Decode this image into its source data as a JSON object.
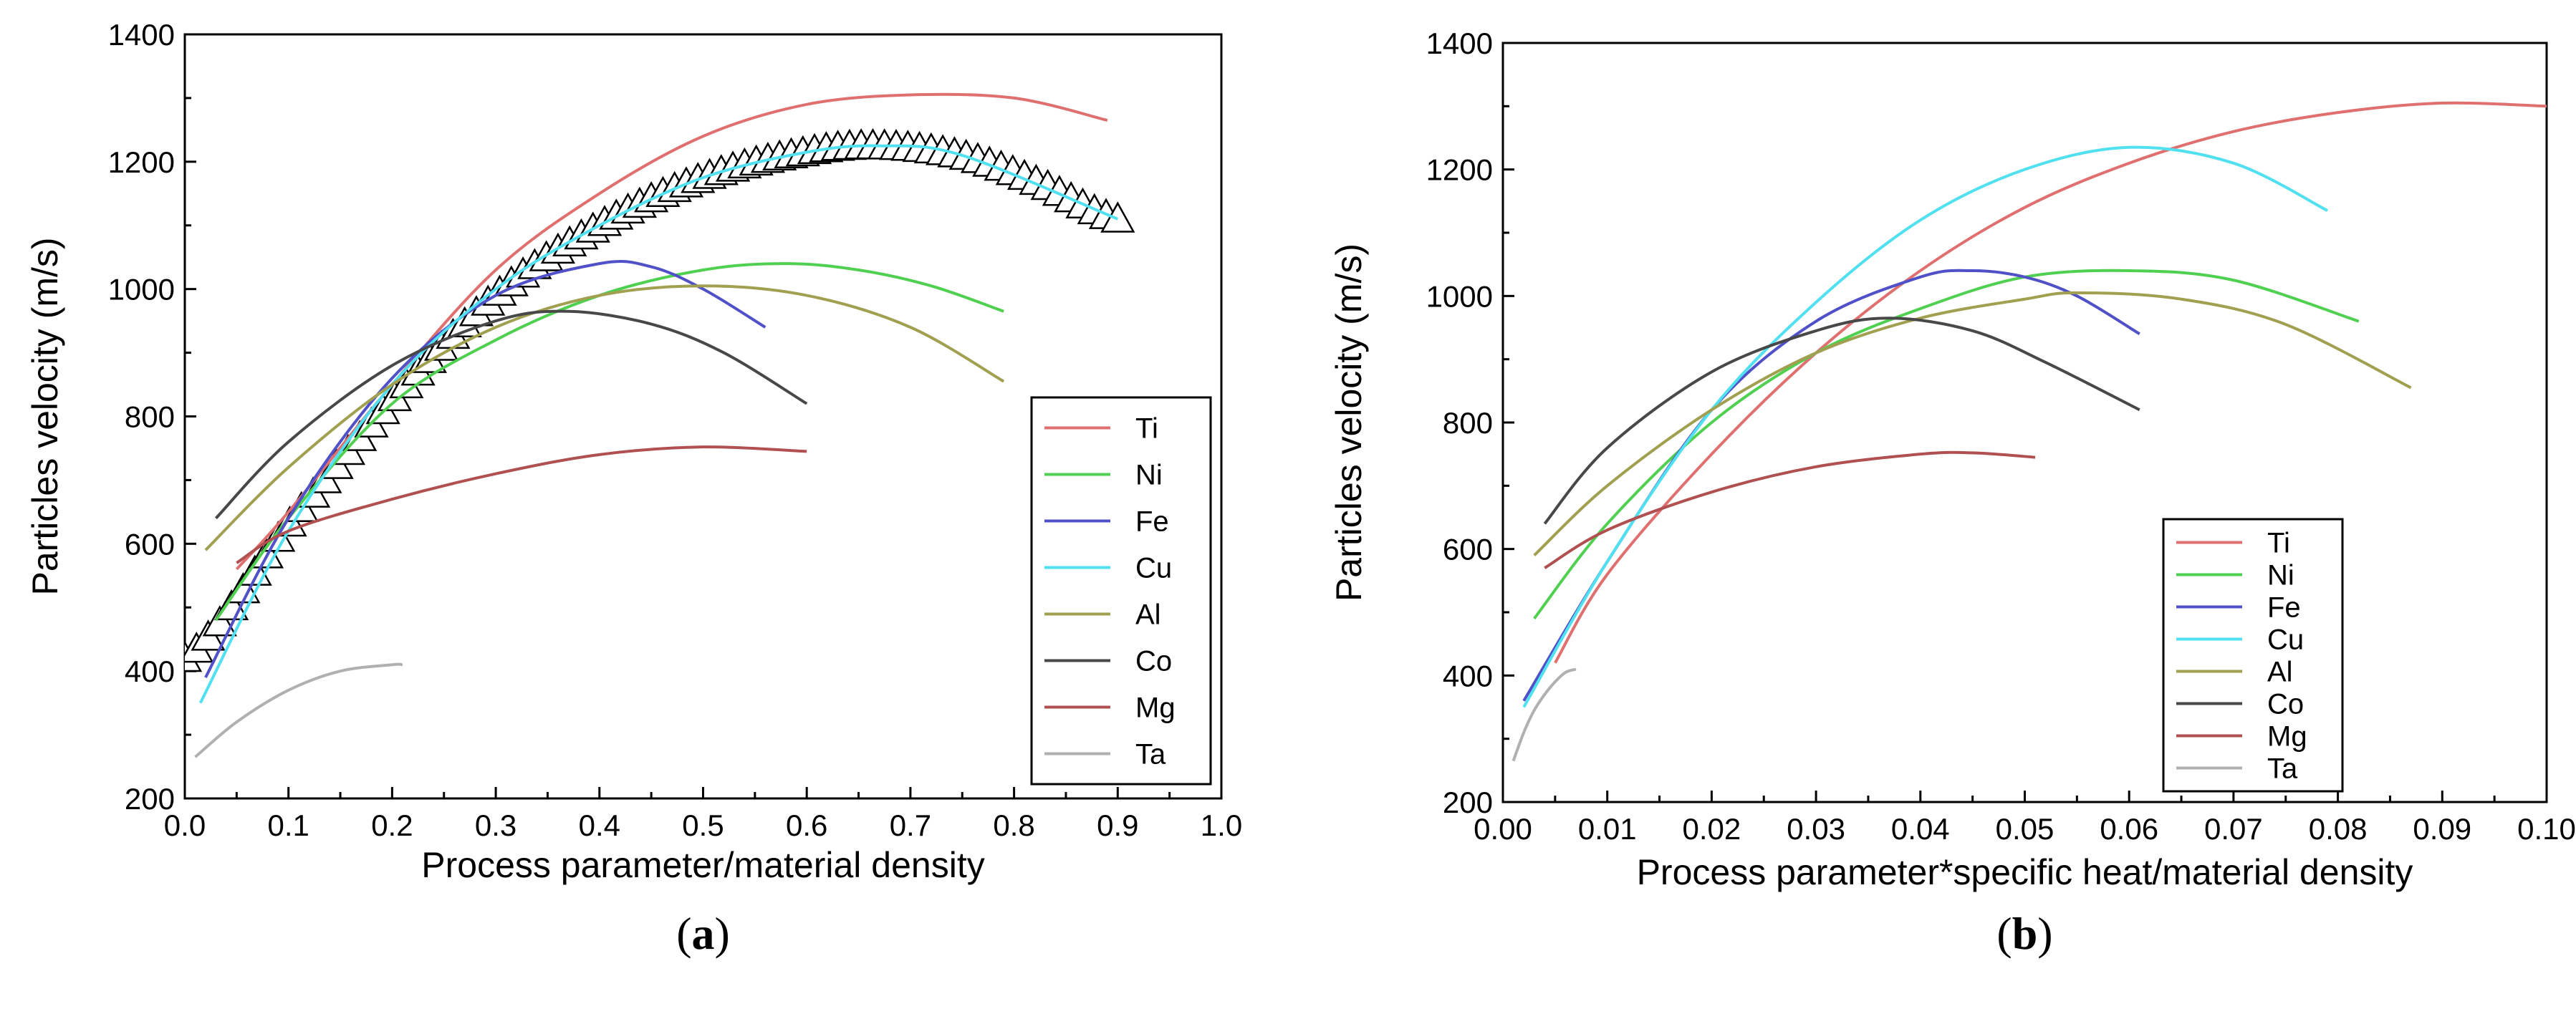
{
  "charts": [
    {
      "panel_label": {
        "open": "(",
        "letter": "a",
        "close": ")"
      },
      "xlabel": "Process parameter/material density",
      "ylabel": "Particles velocity (m/s)",
      "xlim": [
        0.0,
        1.0
      ],
      "ylim": [
        200,
        1400
      ],
      "xticks": [
        "0.0",
        "0.1",
        "0.2",
        "0.3",
        "0.4",
        "0.5",
        "0.6",
        "0.7",
        "0.8",
        "0.9",
        "1.0"
      ],
      "yticks": [
        "200",
        "400",
        "600",
        "800",
        "1000",
        "1200",
        "1400"
      ]
    },
    {
      "panel_label": {
        "open": "(",
        "letter": "b",
        "close": ")"
      },
      "xlabel": "Process parameter*specific heat/material density",
      "ylabel": "Particles velocity (m/s)",
      "xlim": [
        0.0,
        0.1
      ],
      "ylim": [
        200,
        1400
      ],
      "xticks": [
        "0.00",
        "0.01",
        "0.02",
        "0.03",
        "0.04",
        "0.05",
        "0.06",
        "0.07",
        "0.08",
        "0.09",
        "0.10"
      ],
      "yticks": [
        "200",
        "400",
        "600",
        "800",
        "1000",
        "1200",
        "1400"
      ]
    }
  ],
  "chart_data": [
    {
      "type": "line",
      "legend_position": "right",
      "grid": false,
      "xlim": [
        0.0,
        1.0
      ],
      "ylim": [
        200,
        1400
      ],
      "series": [
        {
          "name": "Ti",
          "color": "#e07070",
          "x": [
            0.05,
            0.1,
            0.2,
            0.3,
            0.4,
            0.5,
            0.6,
            0.7,
            0.8,
            0.89
          ],
          "y": [
            560,
            650,
            850,
            1030,
            1150,
            1240,
            1290,
            1305,
            1300,
            1265
          ]
        },
        {
          "name": "Ni",
          "color": "#50d050",
          "x": [
            0.03,
            0.1,
            0.2,
            0.3,
            0.4,
            0.5,
            0.58,
            0.65,
            0.72,
            0.79
          ],
          "y": [
            480,
            640,
            820,
            920,
            990,
            1030,
            1040,
            1030,
            1005,
            965
          ]
        },
        {
          "name": "Fe",
          "color": "#5050c8",
          "x": [
            0.02,
            0.1,
            0.2,
            0.3,
            0.4,
            0.45,
            0.5,
            0.56
          ],
          "y": [
            390,
            640,
            860,
            990,
            1040,
            1035,
            1000,
            940
          ]
        },
        {
          "name": "Cu",
          "color": "#50e0f0",
          "x": [
            0.015,
            0.1,
            0.2,
            0.3,
            0.4,
            0.5,
            0.6,
            0.67,
            0.75,
            0.9
          ],
          "y": [
            350,
            620,
            850,
            1000,
            1100,
            1175,
            1215,
            1225,
            1210,
            1110
          ]
        },
        {
          "name": "Al",
          "color": "#a0a050",
          "x": [
            0.02,
            0.1,
            0.2,
            0.3,
            0.4,
            0.5,
            0.6,
            0.7,
            0.79
          ],
          "y": [
            590,
            720,
            850,
            940,
            990,
            1005,
            990,
            940,
            855
          ]
        },
        {
          "name": "Co",
          "color": "#484848",
          "x": [
            0.03,
            0.1,
            0.2,
            0.3,
            0.37,
            0.45,
            0.52,
            0.6
          ],
          "y": [
            640,
            760,
            880,
            950,
            965,
            945,
            900,
            820
          ]
        },
        {
          "name": "Mg",
          "color": "#b05050",
          "x": [
            0.05,
            0.1,
            0.2,
            0.3,
            0.4,
            0.5,
            0.6
          ],
          "y": [
            570,
            620,
            670,
            710,
            740,
            752,
            745
          ]
        },
        {
          "name": "Ta",
          "color": "#b0b0b0",
          "x": [
            0.01,
            0.05,
            0.1,
            0.15,
            0.2,
            0.21
          ],
          "y": [
            265,
            320,
            370,
            400,
            410,
            410
          ]
        }
      ],
      "marker_series": {
        "marker": "triangle",
        "x": [
          0.0,
          0.1,
          0.2,
          0.3,
          0.4,
          0.5,
          0.6,
          0.67,
          0.75,
          0.82,
          0.9
        ],
        "y": [
          420,
          630,
          825,
          990,
          1100,
          1175,
          1215,
          1225,
          1210,
          1170,
          1110
        ]
      }
    },
    {
      "type": "line",
      "legend_position": "right",
      "grid": false,
      "xlim": [
        0.0,
        0.1
      ],
      "ylim": [
        200,
        1400
      ],
      "series": [
        {
          "name": "Ti",
          "color": "#e07070",
          "x": [
            0.005,
            0.01,
            0.02,
            0.03,
            0.04,
            0.05,
            0.06,
            0.07,
            0.08,
            0.09,
            0.1
          ],
          "y": [
            420,
            560,
            750,
            910,
            1040,
            1140,
            1210,
            1260,
            1290,
            1305,
            1300
          ]
        },
        {
          "name": "Ni",
          "color": "#50d050",
          "x": [
            0.003,
            0.01,
            0.02,
            0.03,
            0.04,
            0.05,
            0.06,
            0.07,
            0.082
          ],
          "y": [
            490,
            640,
            800,
            910,
            980,
            1030,
            1040,
            1025,
            960
          ]
        },
        {
          "name": "Fe",
          "color": "#5050c8",
          "x": [
            0.002,
            0.01,
            0.02,
            0.03,
            0.04,
            0.045,
            0.05,
            0.055,
            0.061
          ],
          "y": [
            360,
            580,
            820,
            960,
            1030,
            1040,
            1030,
            1000,
            940
          ]
        },
        {
          "name": "Cu",
          "color": "#50e0f0",
          "x": [
            0.002,
            0.01,
            0.02,
            0.03,
            0.04,
            0.05,
            0.06,
            0.07,
            0.079
          ],
          "y": [
            350,
            580,
            820,
            990,
            1120,
            1200,
            1235,
            1210,
            1135
          ]
        },
        {
          "name": "Al",
          "color": "#a0a050",
          "x": [
            0.003,
            0.01,
            0.02,
            0.03,
            0.04,
            0.05,
            0.055,
            0.065,
            0.075,
            0.087
          ],
          "y": [
            590,
            700,
            820,
            910,
            965,
            995,
            1005,
            995,
            955,
            855
          ]
        },
        {
          "name": "Co",
          "color": "#484848",
          "x": [
            0.004,
            0.01,
            0.02,
            0.03,
            0.037,
            0.045,
            0.052,
            0.061
          ],
          "y": [
            640,
            760,
            880,
            945,
            965,
            945,
            895,
            820
          ]
        },
        {
          "name": "Mg",
          "color": "#b05050",
          "x": [
            0.004,
            0.01,
            0.02,
            0.03,
            0.04,
            0.045,
            0.051
          ],
          "y": [
            570,
            630,
            690,
            730,
            750,
            752,
            745
          ]
        },
        {
          "name": "Ta",
          "color": "#b0b0b0",
          "x": [
            0.001,
            0.002,
            0.003,
            0.004,
            0.005,
            0.006,
            0.007
          ],
          "y": [
            265,
            310,
            345,
            370,
            390,
            405,
            410
          ]
        }
      ]
    }
  ]
}
